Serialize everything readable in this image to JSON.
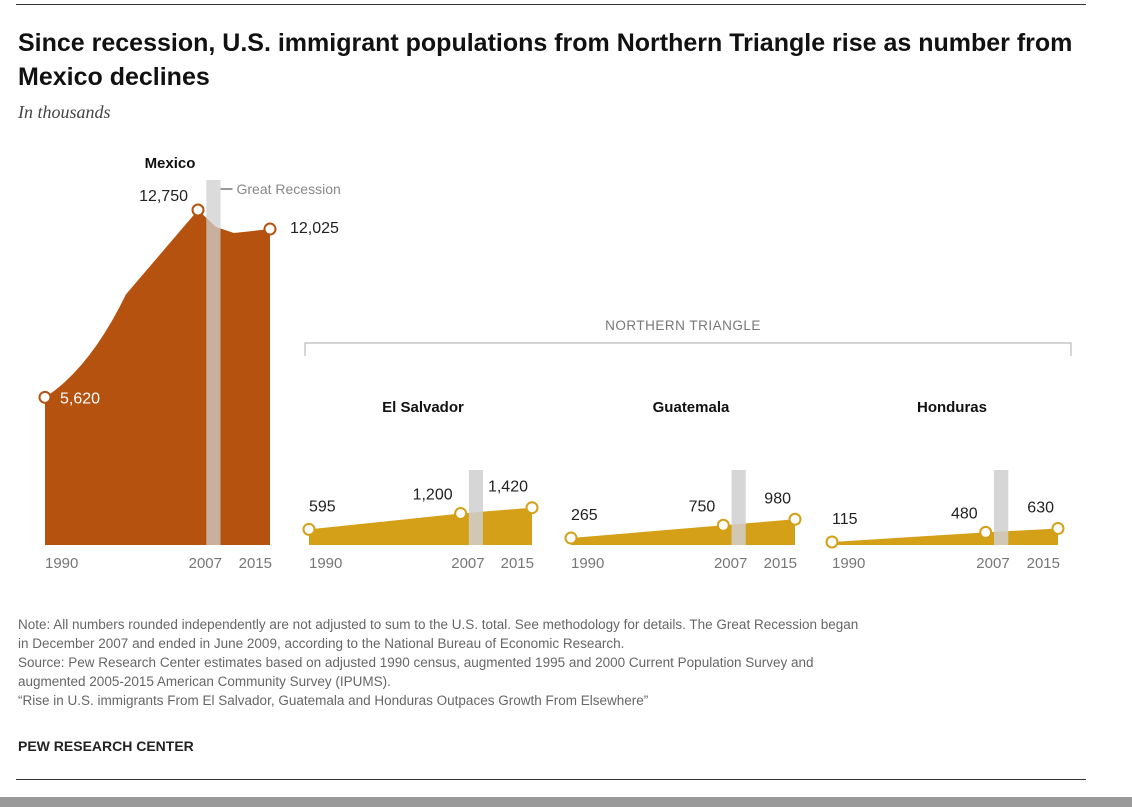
{
  "title": "Since recession, U.S. immigrant populations from Northern Triangle rise as number from Mexico declines",
  "subtitle": "In thousands",
  "recession_label": "Great Recession",
  "group_label": "NORTHERN TRIANGLE",
  "colors": {
    "mexico": "#b5520f",
    "triangle": "#d4a017",
    "recession": "#cfcfcf",
    "axis_text": "#777777"
  },
  "chart_data": {
    "type": "area",
    "unit": "thousands",
    "x": [
      1990,
      2007,
      2015
    ],
    "recession": [
      2007.92,
      2009.5
    ],
    "panels": [
      {
        "name": "Mexico",
        "values": [
          5620,
          12750,
          12025
        ],
        "value_labels": [
          "5,620",
          "12,750",
          "12,025"
        ],
        "tick_labels": [
          "1990",
          "2007",
          "2015"
        ]
      },
      {
        "name": "El Salvador",
        "values": [
          595,
          1200,
          1420
        ],
        "value_labels": [
          "595",
          "1,200",
          "1,420"
        ],
        "tick_labels": [
          "1990",
          "2007",
          "2015"
        ]
      },
      {
        "name": "Guatemala",
        "values": [
          265,
          750,
          980
        ],
        "value_labels": [
          "265",
          "750",
          "980"
        ],
        "tick_labels": [
          "1990",
          "2007",
          "2015"
        ]
      },
      {
        "name": "Honduras",
        "values": [
          115,
          480,
          630
        ],
        "value_labels": [
          "115",
          "480",
          "630"
        ],
        "tick_labels": [
          "1990",
          "2007",
          "2015"
        ]
      }
    ]
  },
  "notes": [
    "Note: All numbers rounded independently are not adjusted to sum to the U.S. total. See methodology for details. The Great Recession began",
    "in December 2007 and ended in June 2009, according to the National Bureau of Economic Research.",
    "Source: Pew Research Center estimates based on adjusted 1990 census, augmented 1995 and 2000 Current Population Survey and",
    "augmented 2005-2015 American Community Survey (IPUMS).",
    "“Rise in U.S. immigrants From El Salvador, Guatemala and Honduras Outpaces Growth From Elsewhere”"
  ],
  "brand": "PEW RESEARCH CENTER"
}
